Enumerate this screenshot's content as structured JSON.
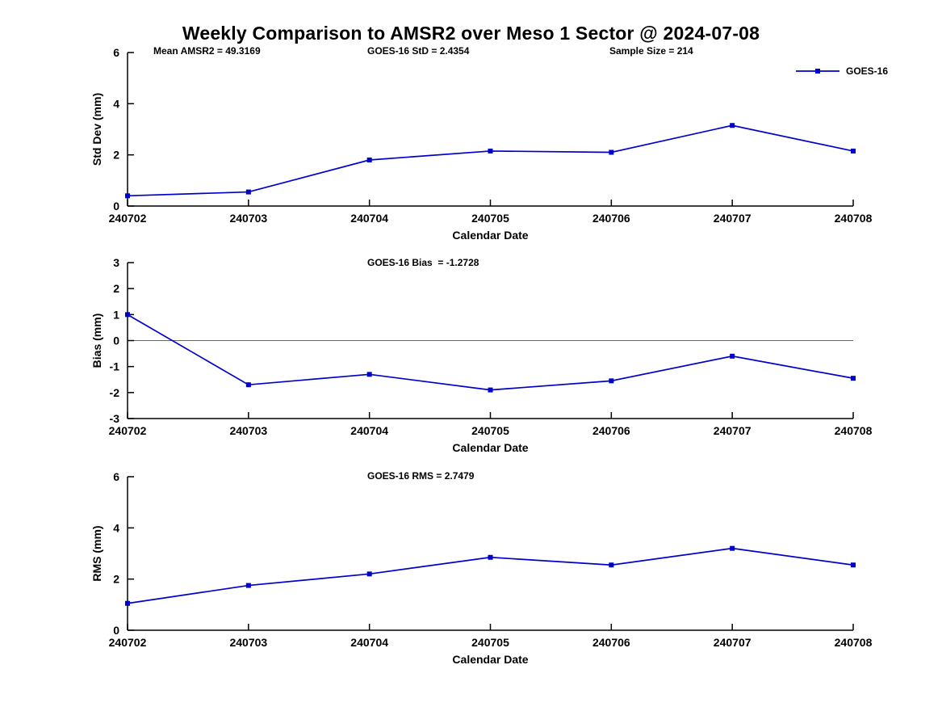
{
  "title": "Weekly Comparison to AMSR2 over Meso 1 Sector @ 2024-07-08",
  "accent_color": "#0000cc",
  "chart_data": [
    {
      "type": "line",
      "name": "std-dev",
      "annotations": [
        "Mean AMSR2 = 49.3169",
        "GOES-16 StD = 2.4354",
        "Sample Size = 214"
      ],
      "ylabel": "Std Dev (mm)",
      "xlabel": "Calendar Date",
      "ylim": [
        0,
        6
      ],
      "yticks": [
        0,
        2,
        4,
        6
      ],
      "categories": [
        "240702",
        "240703",
        "240704",
        "240705",
        "240706",
        "240707",
        "240708"
      ],
      "series": [
        {
          "name": "GOES-16",
          "color": "#0000cc",
          "marker": "square",
          "values": [
            0.4,
            0.55,
            1.8,
            2.15,
            2.1,
            3.15,
            2.15
          ]
        }
      ],
      "legend": {
        "label": "GOES-16",
        "position": "top-right"
      },
      "grid": false
    },
    {
      "type": "line",
      "name": "bias",
      "annotations": [
        "GOES-16 Bias  = -1.2728"
      ],
      "ylabel": "Bias (mm)",
      "xlabel": "Calendar Date",
      "ylim": [
        -3,
        3
      ],
      "yticks": [
        -3,
        -2,
        -1,
        0,
        1,
        2,
        3
      ],
      "zero_line": true,
      "zero_line_color": "#666666",
      "categories": [
        "240702",
        "240703",
        "240704",
        "240705",
        "240706",
        "240707",
        "240708"
      ],
      "series": [
        {
          "name": "GOES-16",
          "color": "#0000cc",
          "marker": "square",
          "values": [
            1.0,
            -1.7,
            -1.3,
            -1.9,
            -1.55,
            -0.6,
            -1.45
          ]
        }
      ],
      "grid": false
    },
    {
      "type": "line",
      "name": "rms",
      "annotations": [
        "GOES-16 RMS = 2.7479"
      ],
      "ylabel": "RMS (mm)",
      "xlabel": "Calendar Date",
      "ylim": [
        0,
        6
      ],
      "yticks": [
        0,
        2,
        4,
        6
      ],
      "categories": [
        "240702",
        "240703",
        "240704",
        "240705",
        "240706",
        "240707",
        "240708"
      ],
      "series": [
        {
          "name": "GOES-16",
          "color": "#0000cc",
          "marker": "square",
          "values": [
            1.05,
            1.75,
            2.2,
            2.85,
            2.55,
            3.2,
            2.55
          ]
        }
      ],
      "grid": false
    }
  ]
}
